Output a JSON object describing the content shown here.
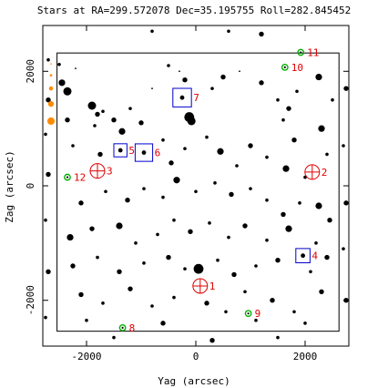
{
  "chart_data": {
    "type": "scatter",
    "title": "Stars at RA=299.572078 Dec=35.195755 Roll=282.845452",
    "xlabel": "Yag (arcsec)",
    "ylabel": "Zag (arcsec)",
    "xlim": [
      -2800,
      2800
    ],
    "ylim": [
      -2800,
      2800
    ],
    "xticks": [
      -2000,
      0,
      2000
    ],
    "yticks": [
      -2000,
      0,
      2000
    ],
    "grid": false,
    "ccd_box": {
      "y": [
        -2540,
        2620
      ],
      "z": [
        -2540,
        2320
      ]
    },
    "stars": [
      {
        "y": -2500,
        "z": 2120,
        "m": 9
      },
      {
        "y": -2450,
        "z": 1800,
        "m": 7
      },
      {
        "y": -2350,
        "z": 1650,
        "m": 6
      },
      {
        "y": -2200,
        "z": 2050,
        "m": 10
      },
      {
        "y": -1900,
        "z": 1400,
        "m": 6
      },
      {
        "y": -2350,
        "z": 1150,
        "m": 8
      },
      {
        "y": -1800,
        "z": 1250,
        "m": 8
      },
      {
        "y": -1850,
        "z": 1050,
        "m": 9
      },
      {
        "y": -1700,
        "z": 1300,
        "m": 9
      },
      {
        "y": -1500,
        "z": 1150,
        "m": 8
      },
      {
        "y": -1200,
        "z": 1350,
        "m": 9
      },
      {
        "y": -1000,
        "z": 1100,
        "m": 8
      },
      {
        "y": -800,
        "z": 1700,
        "m": 10
      },
      {
        "y": -500,
        "z": 2100,
        "m": 9
      },
      {
        "y": -300,
        "z": 2000,
        "m": 10
      },
      {
        "y": -200,
        "z": 1850,
        "m": 8
      },
      {
        "y": -120,
        "z": 1200,
        "m": 5
      },
      {
        "y": -80,
        "z": 1130,
        "m": 6
      },
      {
        "y": 300,
        "z": 1700,
        "m": 9
      },
      {
        "y": 500,
        "z": 1900,
        "m": 8
      },
      {
        "y": 800,
        "z": 2000,
        "m": 10
      },
      {
        "y": 1200,
        "z": 1800,
        "m": 8
      },
      {
        "y": 1500,
        "z": 1500,
        "m": 9
      },
      {
        "y": 1700,
        "z": 1350,
        "m": 8
      },
      {
        "y": 1850,
        "z": 1650,
        "m": 9
      },
      {
        "y": 2250,
        "z": 1900,
        "m": 7
      },
      {
        "y": 2500,
        "z": 1500,
        "m": 9
      },
      {
        "y": 1800,
        "z": 800,
        "m": 8
      },
      {
        "y": 2300,
        "z": 1000,
        "m": 7
      },
      {
        "y": 1600,
        "z": 1150,
        "m": 9
      },
      {
        "y": -2250,
        "z": 700,
        "m": 9
      },
      {
        "y": -1750,
        "z": 550,
        "m": 8
      },
      {
        "y": -1350,
        "z": 950,
        "m": 7
      },
      {
        "y": -600,
        "z": 800,
        "m": 9
      },
      {
        "y": -450,
        "z": 400,
        "m": 8
      },
      {
        "y": -200,
        "z": 650,
        "m": 9
      },
      {
        "y": 200,
        "z": 850,
        "m": 9
      },
      {
        "y": 450,
        "z": 600,
        "m": 7
      },
      {
        "y": 750,
        "z": 350,
        "m": 9
      },
      {
        "y": 1000,
        "z": 700,
        "m": 8
      },
      {
        "y": 1300,
        "z": 500,
        "m": 9
      },
      {
        "y": 1650,
        "z": 300,
        "m": 7
      },
      {
        "y": 2000,
        "z": 150,
        "m": 9
      },
      {
        "y": 2400,
        "z": 550,
        "m": 9
      },
      {
        "y": -2100,
        "z": -300,
        "m": 8
      },
      {
        "y": -1650,
        "z": -100,
        "m": 9
      },
      {
        "y": -1250,
        "z": -250,
        "m": 8
      },
      {
        "y": -950,
        "z": -50,
        "m": 9
      },
      {
        "y": -600,
        "z": -200,
        "m": 9
      },
      {
        "y": -350,
        "z": 100,
        "m": 7
      },
      {
        "y": 0,
        "z": -100,
        "m": 9
      },
      {
        "y": 350,
        "z": 50,
        "m": 9
      },
      {
        "y": 650,
        "z": -150,
        "m": 8
      },
      {
        "y": 1000,
        "z": -50,
        "m": 9
      },
      {
        "y": 1300,
        "z": -250,
        "m": 9
      },
      {
        "y": 1600,
        "z": -500,
        "m": 8
      },
      {
        "y": 1900,
        "z": -300,
        "m": 9
      },
      {
        "y": 2250,
        "z": -350,
        "m": 7
      },
      {
        "y": 2450,
        "z": -600,
        "m": 8
      },
      {
        "y": -2300,
        "z": -900,
        "m": 7
      },
      {
        "y": -1900,
        "z": -750,
        "m": 8
      },
      {
        "y": -1400,
        "z": -700,
        "m": 7
      },
      {
        "y": -1100,
        "z": -1000,
        "m": 9
      },
      {
        "y": -700,
        "z": -850,
        "m": 9
      },
      {
        "y": -400,
        "z": -600,
        "m": 9
      },
      {
        "y": -100,
        "z": -800,
        "m": 8
      },
      {
        "y": 250,
        "z": -650,
        "m": 9
      },
      {
        "y": 600,
        "z": -900,
        "m": 9
      },
      {
        "y": 900,
        "z": -700,
        "m": 8
      },
      {
        "y": 1300,
        "z": -950,
        "m": 9
      },
      {
        "y": 1700,
        "z": -750,
        "m": 7
      },
      {
        "y": 2200,
        "z": -1000,
        "m": 9
      },
      {
        "y": -2250,
        "z": -1400,
        "m": 8
      },
      {
        "y": -1800,
        "z": -1250,
        "m": 9
      },
      {
        "y": -1400,
        "z": -1500,
        "m": 8
      },
      {
        "y": -950,
        "z": -1350,
        "m": 9
      },
      {
        "y": -500,
        "z": -1250,
        "m": 8
      },
      {
        "y": -200,
        "z": -1450,
        "m": 9
      },
      {
        "y": 50,
        "z": -1450,
        "m": 5
      },
      {
        "y": 400,
        "z": -1300,
        "m": 9
      },
      {
        "y": 700,
        "z": -1550,
        "m": 8
      },
      {
        "y": 1100,
        "z": -1400,
        "m": 9
      },
      {
        "y": 1500,
        "z": -1300,
        "m": 8
      },
      {
        "y": 2100,
        "z": -1500,
        "m": 9
      },
      {
        "y": 2400,
        "z": -1250,
        "m": 8
      },
      {
        "y": -2100,
        "z": -1900,
        "m": 8
      },
      {
        "y": -1700,
        "z": -2050,
        "m": 9
      },
      {
        "y": -1200,
        "z": -1800,
        "m": 8
      },
      {
        "y": -800,
        "z": -2100,
        "m": 9
      },
      {
        "y": -400,
        "z": -1950,
        "m": 9
      },
      {
        "y": 200,
        "z": -2050,
        "m": 8
      },
      {
        "y": 550,
        "z": -2200,
        "m": 9
      },
      {
        "y": 900,
        "z": -1850,
        "m": 9
      },
      {
        "y": 1400,
        "z": -2000,
        "m": 8
      },
      {
        "y": 1800,
        "z": -2200,
        "m": 9
      },
      {
        "y": 2300,
        "z": -1850,
        "m": 8
      },
      {
        "y": -2000,
        "z": -2350,
        "m": 9
      },
      {
        "y": -600,
        "z": -2400,
        "m": 8
      },
      {
        "y": 1100,
        "z": -2350,
        "m": 9
      },
      {
        "y": 2000,
        "z": -2400,
        "m": 9
      },
      {
        "y": -2700,
        "z": 2200,
        "m": 9
      },
      {
        "y": -2700,
        "z": 1500,
        "m": 8
      },
      {
        "y": -2750,
        "z": 900,
        "m": 9
      },
      {
        "y": -2700,
        "z": 200,
        "m": 8
      },
      {
        "y": -2750,
        "z": -600,
        "m": 9
      },
      {
        "y": -2700,
        "z": -1500,
        "m": 8
      },
      {
        "y": -2750,
        "z": -2300,
        "m": 9
      },
      {
        "y": 2750,
        "z": 1700,
        "m": 8
      },
      {
        "y": 2700,
        "z": 700,
        "m": 9
      },
      {
        "y": 2750,
        "z": -300,
        "m": 8
      },
      {
        "y": 2700,
        "z": -1100,
        "m": 9
      },
      {
        "y": 2750,
        "z": -2000,
        "m": 8
      },
      {
        "y": -1500,
        "z": -2650,
        "m": 9
      },
      {
        "y": 300,
        "z": -2700,
        "m": 8
      },
      {
        "y": 1500,
        "z": -2650,
        "m": 9
      },
      {
        "y": -800,
        "z": 2700,
        "m": 9
      },
      {
        "y": 600,
        "z": 2700,
        "m": 9
      },
      {
        "y": 1200,
        "z": 2650,
        "m": 8
      }
    ],
    "mag_points": [
      {
        "y": -2650,
        "z": 2130,
        "m": 10.5
      },
      {
        "y": -2650,
        "z": 1930,
        "m": 9.5
      },
      {
        "y": -2650,
        "z": 1700,
        "m": 8.5
      },
      {
        "y": -2650,
        "z": 1430,
        "m": 7.5
      },
      {
        "y": -2650,
        "z": 1130,
        "m": 6.5
      }
    ],
    "guide_stars": [
      {
        "id": "1",
        "y": 80,
        "z": -1750
      },
      {
        "id": "2",
        "y": 2130,
        "z": 240
      },
      {
        "id": "3",
        "y": -1800,
        "z": 260
      }
    ],
    "acq_stars": [
      {
        "id": "4",
        "y": 1960,
        "z": -1220,
        "box": 130
      },
      {
        "id": "5",
        "y": -1380,
        "z": 620,
        "box": 120
      },
      {
        "id": "6",
        "y": -950,
        "z": 580,
        "box": 160
      },
      {
        "id": "7",
        "y": -250,
        "z": 1540,
        "box": 170
      }
    ],
    "fid_lights": [
      {
        "id": "8",
        "y": -1340,
        "z": -2480
      },
      {
        "id": "9",
        "y": 960,
        "z": -2230
      },
      {
        "id": "10",
        "y": 1630,
        "z": 2070
      },
      {
        "id": "11",
        "y": 1920,
        "z": 2330
      },
      {
        "id": "12",
        "y": -2350,
        "z": 150
      }
    ]
  }
}
